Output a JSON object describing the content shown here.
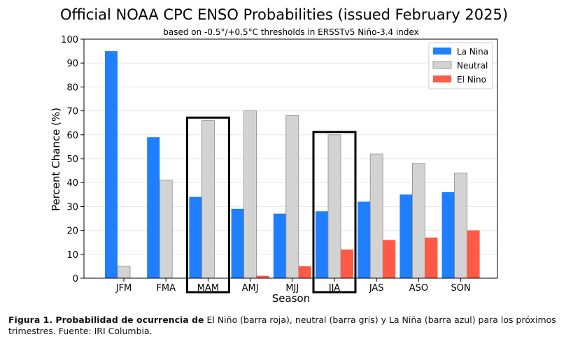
{
  "chart_data": {
    "type": "bar",
    "title": "Official NOAA CPC ENSO Probabilities (issued February 2025)",
    "subtitle": "based on -0.5°/+0.5°C thresholds in ERSSTv5 Niño-3.4 index",
    "xlabel": "Season",
    "ylabel": "Percent Chance (%)",
    "ylim": [
      0,
      100
    ],
    "yticks": [
      0,
      10,
      20,
      30,
      40,
      50,
      60,
      70,
      80,
      90,
      100
    ],
    "categories": [
      "JFM",
      "FMA",
      "MAM",
      "AMJ",
      "MJJ",
      "JJA",
      "JAS",
      "ASO",
      "SON"
    ],
    "series": [
      {
        "name": "La Nina",
        "color": "#1f7fff",
        "values": [
          95,
          59,
          34,
          29,
          27,
          28,
          32,
          35,
          36
        ]
      },
      {
        "name": "Neutral",
        "color": "#d3d3d3",
        "values": [
          5,
          41,
          66,
          70,
          68,
          60,
          52,
          48,
          44
        ]
      },
      {
        "name": "El Nino",
        "color": "#ff5a45",
        "values": [
          0,
          0,
          0,
          1,
          5,
          12,
          16,
          17,
          20
        ]
      }
    ],
    "highlighted_categories": [
      "MAM",
      "JJA"
    ],
    "grid": true,
    "legend_position": "top-right"
  },
  "caption": {
    "bold": "Figura 1. Probabilidad de ocurrencia de",
    "text": " El Niño (barra roja), neutral (barra gris) y La Niña (barra azul) para los próximos trimestres. Fuente: IRI Columbia."
  }
}
